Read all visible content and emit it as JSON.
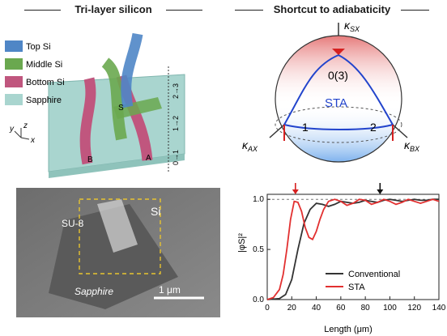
{
  "panels": {
    "left_title": "Tri-layer silicon",
    "right_title": "Shortcut to adiabaticity"
  },
  "layer_legend": [
    {
      "label": "Top Si",
      "color": "#4f86c6"
    },
    {
      "label": "Middle Si",
      "color": "#6aa84f"
    },
    {
      "label": "Bottom Si",
      "color": "#c0567e"
    },
    {
      "label": "Sapphire",
      "color": "#a9d5cf"
    }
  ],
  "layer_diagram": {
    "waveguide_labels": {
      "s": "S",
      "b": "B",
      "a": "A"
    },
    "axes": {
      "y": "y",
      "z": "z",
      "x": "x"
    },
    "stages": [
      "0→1",
      "1→2",
      "2→3"
    ]
  },
  "sem": {
    "labels": {
      "si": "Si",
      "su8": "SU-8",
      "sapphire": "Sapphire"
    },
    "scalebar": "1 μm"
  },
  "bloch": {
    "labels": {
      "ksx": "κ",
      "ksx_sub": "SX",
      "kax": "κ",
      "kax_sub": "AX",
      "kbx": "κ",
      "kbx_sub": "BX",
      "p0": "0(3)",
      "p1": "1",
      "p2": "2",
      "sta": "STA"
    }
  },
  "chart_data": {
    "type": "line",
    "xlabel": "Length (μm)",
    "ylabel": "|φS|²",
    "xlim": [
      0,
      140
    ],
    "ylim": [
      0,
      1.05
    ],
    "xticks": [
      0,
      20,
      40,
      60,
      80,
      100,
      120,
      140
    ],
    "yticks": [
      0.0,
      0.5,
      1.0
    ],
    "markers": [
      {
        "x": 23,
        "color": "#d62020"
      },
      {
        "x": 92,
        "color": "#111111"
      }
    ],
    "legend_position": "lower-right",
    "series": [
      {
        "name": "Conventional",
        "color": "#333333",
        "x": [
          0,
          10,
          15,
          20,
          25,
          30,
          35,
          40,
          45,
          50,
          55,
          60,
          65,
          70,
          75,
          80,
          85,
          90,
          95,
          100,
          105,
          110,
          115,
          120,
          125,
          130,
          135,
          140
        ],
        "y": [
          0,
          0.01,
          0.05,
          0.2,
          0.5,
          0.76,
          0.9,
          0.96,
          0.95,
          0.93,
          0.95,
          0.98,
          0.97,
          0.96,
          0.97,
          0.99,
          0.98,
          0.97,
          0.99,
          1.0,
          0.99,
          0.98,
          0.99,
          1.0,
          0.99,
          0.99,
          1.0,
          1.0
        ]
      },
      {
        "name": "STA",
        "color": "#e23030",
        "x": [
          0,
          5,
          10,
          13,
          16,
          19,
          22,
          25,
          28,
          31,
          34,
          37,
          40,
          43,
          46,
          50,
          55,
          60,
          65,
          70,
          75,
          80,
          85,
          90,
          95,
          100,
          105,
          110,
          115,
          120,
          125,
          130,
          135,
          140
        ],
        "y": [
          0,
          0.02,
          0.1,
          0.25,
          0.5,
          0.8,
          0.98,
          0.97,
          0.88,
          0.72,
          0.62,
          0.6,
          0.68,
          0.8,
          0.9,
          0.98,
          1.0,
          0.98,
          0.94,
          0.96,
          1.0,
          0.99,
          0.95,
          0.97,
          1.0,
          0.98,
          0.95,
          0.97,
          1.0,
          0.98,
          0.96,
          0.98,
          1.0,
          0.98
        ]
      }
    ]
  }
}
